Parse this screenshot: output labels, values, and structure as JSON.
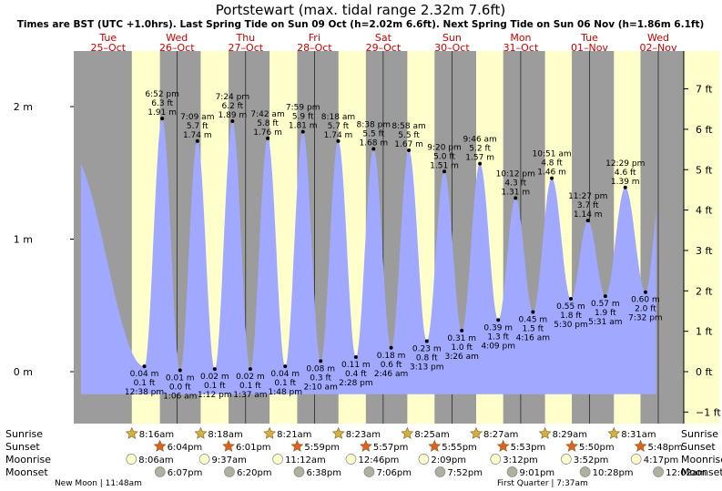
{
  "chart_data": {
    "type": "area",
    "title": "Portstewart (max. tidal range 2.32m 7.6ft)",
    "subtitle": "Times are BST (UTC +1.0hrs). Last Spring Tide on Sun 09 Oct (h=2.02m 6.6ft). Next Spring Tide on Sun 06 Nov (h=1.86m 6.1ft)",
    "ylim_m": [
      -0.18,
      2.4
    ],
    "yticks_m": [
      {
        "v": 0,
        "label": "0 m"
      },
      {
        "v": 1,
        "label": "1 m"
      },
      {
        "v": 2,
        "label": "2 m"
      }
    ],
    "yticks_ft": [
      {
        "v": -1,
        "label": "−1 ft"
      },
      {
        "v": 0,
        "label": "0 ft"
      },
      {
        "v": 1,
        "label": "1 ft"
      },
      {
        "v": 2,
        "label": "2 ft"
      },
      {
        "v": 3,
        "label": "3 ft"
      },
      {
        "v": 4,
        "label": "4 ft"
      },
      {
        "v": 5,
        "label": "5 ft"
      },
      {
        "v": 6,
        "label": "6 ft"
      },
      {
        "v": 7,
        "label": "7 ft"
      }
    ],
    "days": [
      {
        "dow": "Tue",
        "date": "25–Oct",
        "sunrise": 8.267,
        "sunset": 18.067
      },
      {
        "dow": "Wed",
        "date": "26–Oct",
        "sunrise": 8.3,
        "sunset": 18.017
      },
      {
        "dow": "Thu",
        "date": "27–Oct",
        "sunrise": 8.35,
        "sunset": 17.983
      },
      {
        "dow": "Fri",
        "date": "28–Oct",
        "sunrise": 8.383,
        "sunset": 17.95
      },
      {
        "dow": "Sat",
        "date": "29–Oct",
        "sunrise": 8.417,
        "sunset": 17.917
      },
      {
        "dow": "Sun",
        "date": "30–Oct",
        "sunrise": 8.45,
        "sunset": 17.883
      },
      {
        "dow": "Mon",
        "date": "31–Oct",
        "sunrise": 8.483,
        "sunset": 17.833
      },
      {
        "dow": "Tue",
        "date": "01–Nov",
        "sunrise": 8.517,
        "sunset": 17.8
      },
      {
        "dow": "Wed",
        "date": "02–Nov"
      }
    ],
    "tides": [
      {
        "t": -13.7,
        "h": 1.67,
        "type": "high",
        "labels": []
      },
      {
        "t": 12.633,
        "h": 0.04,
        "type": "low",
        "labels": [
          "0.04 m",
          "0.1 ft",
          "12:38 pm"
        ]
      },
      {
        "t": 18.867,
        "h": 1.91,
        "type": "high",
        "labels": [
          "6:52 pm",
          "6.3 ft",
          "1.91 m"
        ]
      },
      {
        "t": 25.1,
        "h": 0.01,
        "type": "low",
        "labels": [
          "0.01 m",
          "0.0 ft",
          "1:06 am"
        ]
      },
      {
        "t": 31.15,
        "h": 1.74,
        "type": "high",
        "labels": [
          "7:09 am",
          "5.7 ft",
          "1.74 m"
        ]
      },
      {
        "t": 37.2,
        "h": 0.02,
        "type": "low",
        "labels": [
          "0.02 m",
          "0.1 ft",
          "1:12 pm"
        ]
      },
      {
        "t": 43.4,
        "h": 1.89,
        "type": "high",
        "labels": [
          "7:24 pm",
          "6.2 ft",
          "1.89 m"
        ]
      },
      {
        "t": 49.617,
        "h": 0.02,
        "type": "low",
        "labels": [
          "0.02 m",
          "0.1 ft",
          "1:37 am"
        ]
      },
      {
        "t": 55.7,
        "h": 1.76,
        "type": "high",
        "labels": [
          "7:42 am",
          "5.8 ft",
          "1.76 m"
        ]
      },
      {
        "t": 61.8,
        "h": 0.04,
        "type": "low",
        "labels": [
          "0.04 m",
          "0.1 ft",
          "1:48 pm"
        ]
      },
      {
        "t": 67.983,
        "h": 1.81,
        "type": "high",
        "labels": [
          "7:59 pm",
          "5.9 ft",
          "1.81 m"
        ]
      },
      {
        "t": 74.167,
        "h": 0.08,
        "type": "low",
        "labels": [
          "0.08 m",
          "0.3 ft",
          "2:10 am"
        ]
      },
      {
        "t": 80.3,
        "h": 1.74,
        "type": "high",
        "labels": [
          "8:18 am",
          "5.7 ft",
          "1.74 m"
        ]
      },
      {
        "t": 86.467,
        "h": 0.11,
        "type": "low",
        "labels": [
          "0.11 m",
          "0.4 ft",
          "2:28 pm"
        ]
      },
      {
        "t": 92.633,
        "h": 1.68,
        "type": "high",
        "labels": [
          "8:38 pm",
          "5.5 ft",
          "1.68 m"
        ]
      },
      {
        "t": 98.767,
        "h": 0.18,
        "type": "low",
        "labels": [
          "0.18 m",
          "0.6 ft",
          "2:46 am"
        ]
      },
      {
        "t": 104.967,
        "h": 1.67,
        "type": "high",
        "labels": [
          "8:58 am",
          "5.5 ft",
          "1.67 m"
        ]
      },
      {
        "t": 111.217,
        "h": 0.23,
        "type": "low",
        "labels": [
          "0.23 m",
          "0.8 ft",
          "3:13 pm"
        ]
      },
      {
        "t": 117.333,
        "h": 1.51,
        "type": "high",
        "labels": [
          "9:20 pm",
          "5.0 ft",
          "1.51 m"
        ]
      },
      {
        "t": 123.433,
        "h": 0.31,
        "type": "low",
        "labels": [
          "0.31 m",
          "1.0 ft",
          "3:26 am"
        ]
      },
      {
        "t": 129.767,
        "h": 1.57,
        "type": "high",
        "labels": [
          "9:46 am",
          "5.2 ft",
          "1.57 m"
        ]
      },
      {
        "t": 136.15,
        "h": 0.39,
        "type": "low",
        "labels": [
          "0.39 m",
          "1.3 ft",
          "4:09 pm"
        ]
      },
      {
        "t": 142.2,
        "h": 1.31,
        "type": "high",
        "labels": [
          "10:12 pm",
          "4.3 ft",
          "1.31 m"
        ]
      },
      {
        "t": 148.267,
        "h": 0.45,
        "type": "low",
        "labels": [
          "0.45 m",
          "1.5 ft",
          "4:16 am"
        ]
      },
      {
        "t": 154.85,
        "h": 1.46,
        "type": "high",
        "labels": [
          "10:51 am",
          "4.8 ft",
          "1.46 m"
        ]
      },
      {
        "t": 161.5,
        "h": 0.55,
        "type": "low",
        "labels": [
          "0.55 m",
          "1.8 ft",
          "5:30 pm"
        ]
      },
      {
        "t": 167.45,
        "h": 1.14,
        "type": "high",
        "labels": [
          "11:27 pm",
          "3.7 ft",
          "1.14 m"
        ]
      },
      {
        "t": 173.517,
        "h": 0.57,
        "type": "low",
        "labels": [
          "0.57 m",
          "1.9 ft",
          "5:31 am"
        ]
      },
      {
        "t": 180.483,
        "h": 1.39,
        "type": "high",
        "labels": [
          "12:29 pm",
          "4.6 ft",
          "1.39 m"
        ]
      },
      {
        "t": 187.533,
        "h": 0.6,
        "type": "low",
        "labels": [
          "0.60 m",
          "2.0 ft",
          "7:32 pm"
        ]
      },
      {
        "t": 193.0,
        "h": 1.39,
        "type": "high",
        "labels": []
      }
    ],
    "sun_moon": {
      "sunrise": [
        {
          "t": 8.267,
          "label": "8:16am"
        },
        {
          "t": 32.3,
          "label": "8:18am"
        },
        {
          "t": 56.35,
          "label": "8:21am"
        },
        {
          "t": 80.383,
          "label": "8:23am"
        },
        {
          "t": 104.417,
          "label": "8:25am"
        },
        {
          "t": 128.45,
          "label": "8:27am"
        },
        {
          "t": 152.483,
          "label": "8:29am"
        },
        {
          "t": 176.517,
          "label": "8:31am"
        }
      ],
      "sunset": [
        {
          "t": 18.067,
          "label": "6:04pm"
        },
        {
          "t": 42.017,
          "label": "6:01pm"
        },
        {
          "t": 65.983,
          "label": "5:59pm"
        },
        {
          "t": 89.95,
          "label": "5:57pm"
        },
        {
          "t": 113.917,
          "label": "5:55pm"
        },
        {
          "t": 137.883,
          "label": "5:53pm"
        },
        {
          "t": 161.833,
          "label": "5:50pm"
        },
        {
          "t": 185.8,
          "label": "5:48pm"
        }
      ],
      "moonrise": [
        {
          "t": 8.1,
          "label": "8:06am"
        },
        {
          "t": 33.617,
          "label": "9:37am"
        },
        {
          "t": 59.2,
          "label": "11:12am"
        },
        {
          "t": 84.767,
          "label": "12:46pm"
        },
        {
          "t": 110.15,
          "label": "2:09pm"
        },
        {
          "t": 135.2,
          "label": "3:12pm"
        },
        {
          "t": 159.867,
          "label": "3:52pm"
        },
        {
          "t": 184.283,
          "label": "4:17pm"
        }
      ],
      "moonset": [
        {
          "t": 18.117,
          "label": "6:07pm"
        },
        {
          "t": 42.333,
          "label": "6:20pm"
        },
        {
          "t": 66.633,
          "label": "6:38pm"
        },
        {
          "t": 91.1,
          "label": "7:06pm"
        },
        {
          "t": 115.867,
          "label": "7:52pm"
        },
        {
          "t": 141.017,
          "label": "9:01pm"
        },
        {
          "t": 166.467,
          "label": "10:28pm"
        },
        {
          "t": 192.033,
          "label": "12:02am"
        }
      ]
    },
    "row_labels": {
      "sunrise": "Sunrise",
      "sunset": "Sunset",
      "moonrise": "Moonrise",
      "moonset": "Moonset"
    },
    "moon_phases": [
      {
        "t": 11.8,
        "label": "New Moon | 11:48am",
        "align": "end"
      },
      {
        "t": 151.617,
        "label": "First Quarter | 7:37am",
        "align": "middle"
      }
    ],
    "colors": {
      "night": "#9c9c9c",
      "day": "#ffffcc",
      "water": "#a0a8ff",
      "title": "#000000",
      "date": "#cc0000",
      "sun_star": "#d4b040",
      "sunset_star": "#e06020",
      "moonrise": "#ffffcc",
      "moonset": "#b0b0a0"
    }
  }
}
